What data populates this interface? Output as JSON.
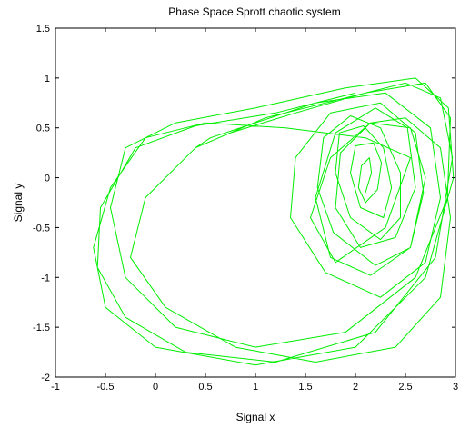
{
  "chart_data": {
    "type": "line",
    "title": "Phase Space Sprott chaotic system",
    "xlabel": "Signal x",
    "ylabel": "Signal y",
    "xlim": [
      -1,
      3
    ],
    "ylim": [
      -2,
      1.5
    ],
    "xticks": [
      "-1",
      "-0.5",
      "0",
      "0.5",
      "1",
      "1.5",
      "2",
      "2.5",
      "3"
    ],
    "yticks": [
      "-2",
      "-1.5",
      "-1",
      "-0.5",
      "0",
      "0.5",
      "1",
      "1.5"
    ],
    "grid": false,
    "legend": "none",
    "colors": {
      "trajectory": "#00ee00",
      "axes": "#000000",
      "background": "#ffffff"
    },
    "series": [
      {
        "x": [
          2.1,
          2.16,
          2.14,
          2.06,
          2.03,
          2.1,
          2.22,
          2.26,
          2.18,
          2.0,
          1.95,
          2.05,
          2.28,
          2.36,
          2.28,
          2.08,
          1.84,
          1.8,
          1.95,
          2.25,
          2.45,
          2.45,
          2.25,
          1.95,
          1.68,
          1.62,
          1.78,
          2.2,
          2.55,
          2.68,
          2.6,
          2.25,
          1.75,
          1.4,
          1.35,
          1.7,
          2.25,
          2.7,
          2.85,
          2.75,
          2.3,
          1.6,
          1.0,
          0.55,
          0.4,
          0.75,
          1.4,
          2.1,
          2.7,
          2.95,
          2.92,
          2.6,
          1.9,
          1.0,
          0.2,
          -0.3,
          -0.45,
          -0.3,
          0.2,
          1.0,
          1.9,
          2.6,
          2.93,
          2.98,
          2.7,
          2.0,
          1.0,
          0.0,
          -0.5,
          -0.62,
          -0.45,
          -0.1,
          0.5,
          1.3,
          2.1,
          2.55,
          2.3,
          1.8,
          1.55,
          1.75,
          2.15,
          2.55,
          2.7,
          2.55,
          2.15,
          1.75,
          1.6,
          1.8,
          2.2,
          2.52,
          2.6,
          2.4,
          2.05,
          1.8,
          1.85,
          2.15,
          2.5,
          2.85,
          2.95,
          2.85,
          2.4,
          1.6,
          0.8,
          0.1,
          -0.25,
          -0.1,
          0.4,
          1.1,
          1.9,
          2.5,
          2.85,
          2.97,
          2.8,
          2.2,
          1.2,
          0.3,
          -0.3,
          -0.58,
          -0.55,
          -0.2,
          0.4,
          1.2,
          2.0
        ],
        "y": [
          -0.15,
          0.05,
          0.2,
          0.12,
          -0.1,
          -0.25,
          -0.12,
          0.15,
          0.35,
          0.32,
          0.05,
          -0.3,
          -0.4,
          -0.1,
          0.3,
          0.52,
          0.45,
          0.05,
          -0.4,
          -0.62,
          -0.4,
          0.05,
          0.5,
          0.62,
          0.4,
          -0.1,
          -0.55,
          -0.88,
          -0.7,
          -0.15,
          0.45,
          0.75,
          0.65,
          0.2,
          -0.4,
          -0.95,
          -1.2,
          -0.85,
          -0.2,
          0.5,
          0.85,
          0.75,
          0.55,
          0.4,
          0.3,
          0.45,
          0.65,
          0.85,
          0.95,
          0.6,
          -0.2,
          -1.0,
          -1.55,
          -1.7,
          -1.5,
          -1.0,
          -0.3,
          0.3,
          0.55,
          0.7,
          0.9,
          1.0,
          0.7,
          0.0,
          -1.0,
          -1.7,
          -1.88,
          -1.7,
          -1.3,
          -0.7,
          -0.1,
          0.4,
          0.55,
          0.5,
          0.4,
          0.2,
          -0.5,
          -0.85,
          -0.4,
          0.2,
          0.55,
          0.5,
          0.0,
          -0.7,
          -0.98,
          -0.8,
          -0.2,
          0.45,
          0.7,
          0.5,
          -0.1,
          -0.6,
          -0.7,
          -0.3,
          0.25,
          0.55,
          0.6,
          0.3,
          -0.4,
          -1.2,
          -1.7,
          -1.85,
          -1.7,
          -1.3,
          -0.8,
          -0.2,
          0.3,
          0.6,
          0.8,
          0.95,
          0.8,
          0.2,
          -0.8,
          -1.55,
          -1.85,
          -1.75,
          -1.4,
          -0.9,
          -0.3,
          0.3,
          0.52,
          0.65,
          0.85
        ]
      }
    ]
  }
}
